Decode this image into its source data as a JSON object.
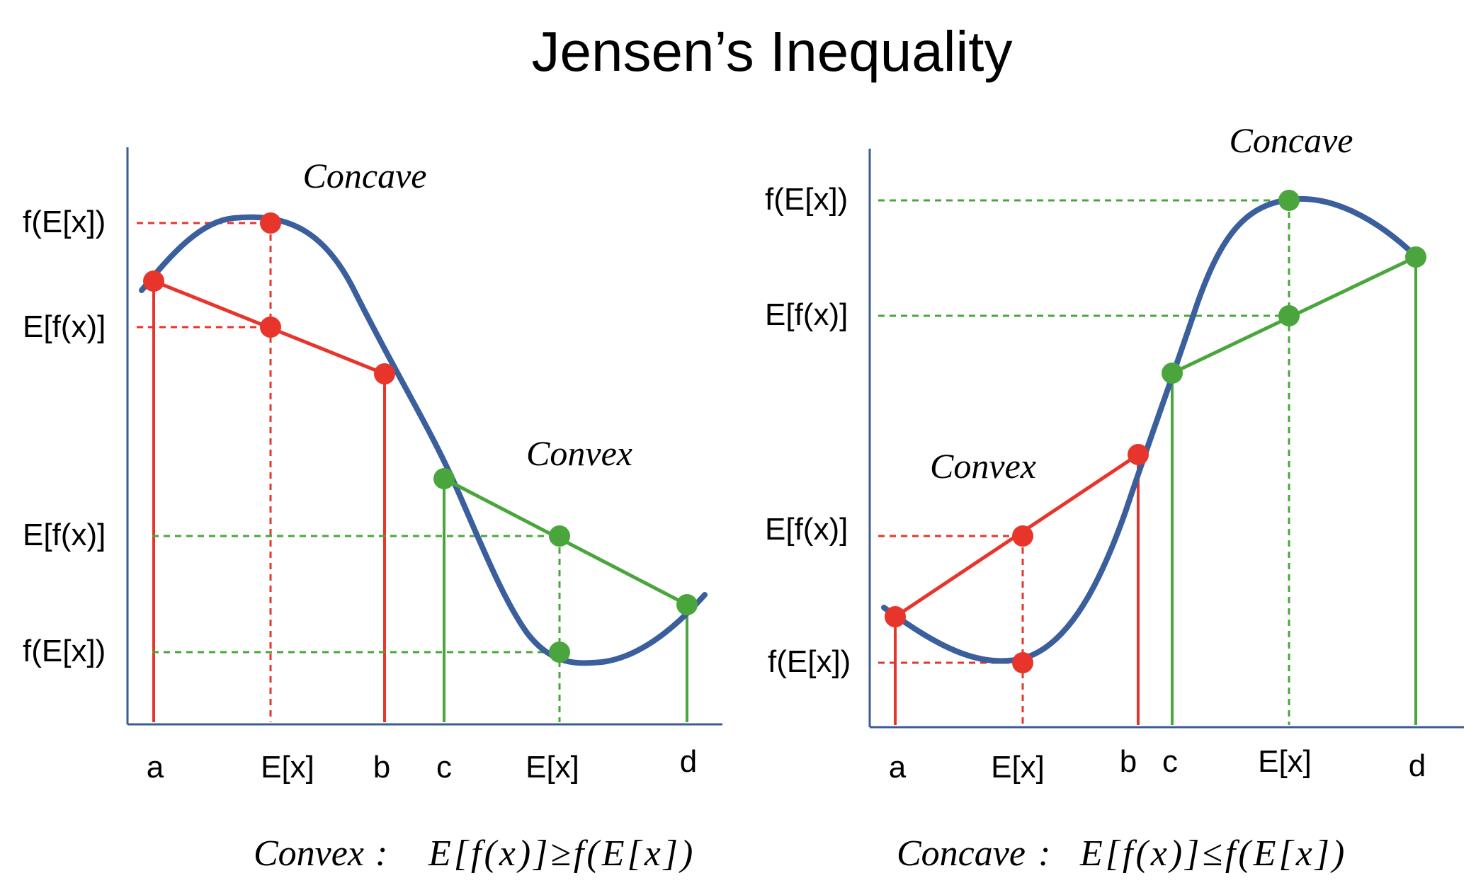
{
  "title": "Jensen’s Inequality",
  "colors": {
    "curve": "#3a5f9c",
    "axis": "#3b5b95",
    "red": "#e8352b",
    "green": "#4aa63c"
  },
  "left": {
    "label_concave": "Concave",
    "label_convex": "Convex",
    "y_labels": [
      "f(E[x])",
      "E[f(x)]",
      "E[f(x)]",
      "f(E[x])"
    ],
    "x_labels": [
      "a",
      "E[x]",
      "b",
      "c",
      "E[x]",
      "d"
    ],
    "formula": {
      "name": "Convex",
      "colon": ":",
      "expr": "E[f(x)]≥f(E[x])"
    }
  },
  "right": {
    "label_concave": "Concave",
    "label_convex": "Convex",
    "y_labels": [
      "f(E[x])",
      "E[f(x)]",
      "E[f(x)]",
      "f(E[x])"
    ],
    "x_labels": [
      "a",
      "E[x]",
      "b",
      "c",
      "E[x]",
      "d"
    ],
    "formula": {
      "name": "Concave",
      "colon": ":",
      "expr": "E[f(x)]≤f(E[x])"
    }
  }
}
